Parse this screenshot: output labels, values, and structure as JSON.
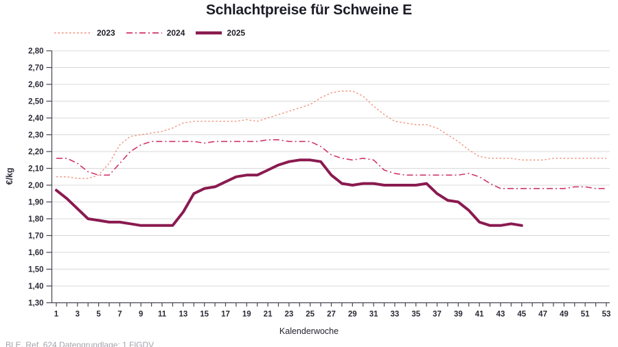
{
  "title": "Schlachtpreise für Schweine E",
  "footer": "BLE, Ref. 624 Datengrundlage: 1 FlGDV",
  "legend": [
    {
      "label": "2023",
      "color": "#f08a72",
      "style": "dotted"
    },
    {
      "label": "2024",
      "color": "#d13368",
      "style": "dashdot"
    },
    {
      "label": "2025",
      "color": "#8a1a50",
      "style": "solid"
    }
  ],
  "axes": {
    "y_label": "€/kg",
    "x_label": "Kalenderwoche",
    "y_ticks": [
      {
        "label": "2,80",
        "value": 2.8
      },
      {
        "label": "2,70",
        "value": 2.7
      },
      {
        "label": "2,60",
        "value": 2.6
      },
      {
        "label": "2,50",
        "value": 2.5
      },
      {
        "label": "2,40",
        "value": 2.4
      },
      {
        "label": "2,30",
        "value": 2.3
      },
      {
        "label": "2,20",
        "value": 2.2
      },
      {
        "label": "2,10",
        "value": 2.1
      },
      {
        "label": "2,00",
        "value": 2.0
      },
      {
        "label": "1,90",
        "value": 1.9
      },
      {
        "label": "1,80",
        "value": 1.8
      },
      {
        "label": "1,70",
        "value": 1.7
      },
      {
        "label": "1,60",
        "value": 1.6
      },
      {
        "label": "1,50",
        "value": 1.5
      },
      {
        "label": "1,40",
        "value": 1.4
      },
      {
        "label": "1,30",
        "value": 1.3
      }
    ],
    "x_tick_labels": [
      "1",
      "3",
      "5",
      "7",
      "9",
      "11",
      "13",
      "15",
      "17",
      "19",
      "21",
      "23",
      "25",
      "27",
      "29",
      "31",
      "33",
      "35",
      "37",
      "39",
      "41",
      "43",
      "45",
      "47",
      "49",
      "51",
      "53"
    ]
  },
  "chart_data": {
    "type": "line",
    "title": "Schlachtpreise für Schweine E",
    "xlabel": "Kalenderwoche",
    "ylabel": "€/kg",
    "x": [
      1,
      2,
      3,
      4,
      5,
      6,
      7,
      8,
      9,
      10,
      11,
      12,
      13,
      14,
      15,
      16,
      17,
      18,
      19,
      20,
      21,
      22,
      23,
      24,
      25,
      26,
      27,
      28,
      29,
      30,
      31,
      32,
      33,
      34,
      35,
      36,
      37,
      38,
      39,
      40,
      41,
      42,
      43,
      44,
      45,
      46,
      47,
      48,
      49,
      50,
      51,
      52,
      53
    ],
    "xlim": [
      1,
      53
    ],
    "ylim": [
      1.3,
      2.8
    ],
    "ytick_step": 0.1,
    "grid": "horizontal",
    "legend_position": "top-left",
    "series": [
      {
        "name": "2023",
        "color": "#f08a72",
        "line_style": "dotted",
        "line_width": 1.3,
        "values": [
          2.05,
          2.05,
          2.04,
          2.04,
          2.06,
          2.13,
          2.24,
          2.29,
          2.3,
          2.31,
          2.32,
          2.34,
          2.37,
          2.38,
          2.38,
          2.38,
          2.38,
          2.38,
          2.39,
          2.38,
          2.4,
          2.42,
          2.44,
          2.46,
          2.48,
          2.52,
          2.55,
          2.56,
          2.56,
          2.53,
          2.47,
          2.42,
          2.38,
          2.37,
          2.36,
          2.36,
          2.34,
          2.3,
          2.26,
          2.21,
          2.17,
          2.16,
          2.16,
          2.16,
          2.15,
          2.15,
          2.15,
          2.16,
          2.16,
          2.16,
          2.16,
          2.16,
          2.16
        ]
      },
      {
        "name": "2024",
        "color": "#d13368",
        "line_style": "dashdot",
        "line_width": 1.6,
        "values": [
          2.16,
          2.16,
          2.13,
          2.08,
          2.06,
          2.06,
          2.13,
          2.2,
          2.24,
          2.26,
          2.26,
          2.26,
          2.26,
          2.26,
          2.25,
          2.26,
          2.26,
          2.26,
          2.26,
          2.26,
          2.27,
          2.27,
          2.26,
          2.26,
          2.26,
          2.23,
          2.18,
          2.16,
          2.15,
          2.16,
          2.15,
          2.09,
          2.07,
          2.06,
          2.06,
          2.06,
          2.06,
          2.06,
          2.06,
          2.07,
          2.05,
          2.01,
          1.98,
          1.98,
          1.98,
          1.98,
          1.98,
          1.98,
          1.98,
          1.99,
          1.99,
          1.98,
          1.98
        ]
      },
      {
        "name": "2025",
        "color": "#8a1a50",
        "line_style": "solid",
        "line_width": 4,
        "values": [
          1.97,
          1.92,
          1.86,
          1.8,
          1.79,
          1.78,
          1.78,
          1.77,
          1.76,
          1.76,
          1.76,
          1.76,
          1.84,
          1.95,
          1.98,
          1.99,
          2.02,
          2.05,
          2.06,
          2.06,
          2.09,
          2.12,
          2.14,
          2.15,
          2.15,
          2.14,
          2.06,
          2.01,
          2.0,
          2.01,
          2.01,
          2.0,
          2.0,
          2.0,
          2.0,
          2.01,
          1.95,
          1.91,
          1.9,
          1.85,
          1.78,
          1.76,
          1.76,
          1.77,
          1.76
        ]
      }
    ]
  }
}
